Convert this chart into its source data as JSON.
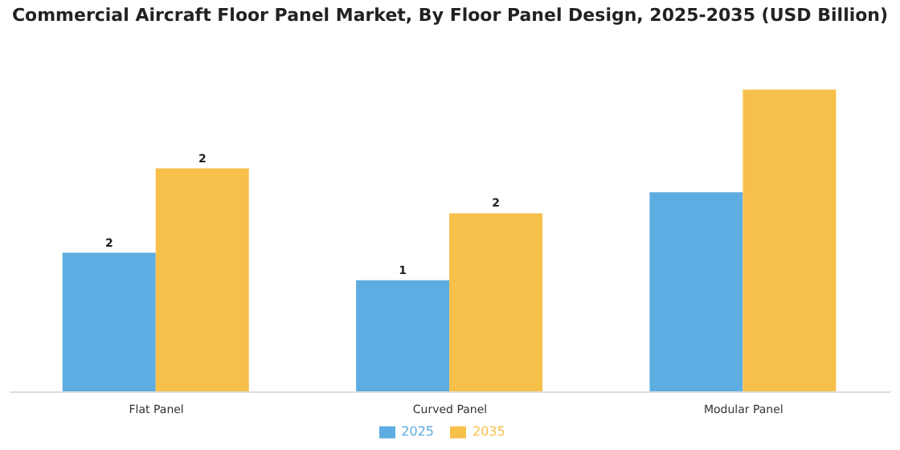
{
  "chart_data": {
    "type": "bar",
    "title": "Commercial Aircraft Floor Panel Market, By Floor Panel Design, 2025-2035 (USD Billion)",
    "categories": [
      "Flat Panel",
      "Curved Panel",
      "Modular Panel"
    ],
    "legend": "bottom",
    "grid": false,
    "series": [
      {
        "name": "2025",
        "color": "#5dade2",
        "values": [
          1.52,
          1.22,
          2.18
        ],
        "value_labels": [
          "2",
          "1",
          null
        ]
      },
      {
        "name": "2035",
        "color": "#f7c04a",
        "values": [
          2.44,
          1.95,
          3.3
        ],
        "value_labels": [
          "2",
          "2",
          null
        ]
      }
    ]
  }
}
